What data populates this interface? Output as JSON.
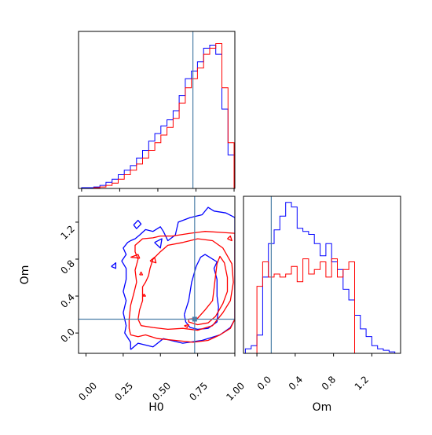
{
  "chart_data": {
    "type": "corner",
    "parameters": [
      "H0",
      "Om"
    ],
    "truth": {
      "H0": 0.73,
      "Om": 0.15
    },
    "colors": {
      "blue": "#0000ff",
      "red": "#ff0000",
      "truth": "#4c7fa8",
      "frame": "#000000"
    },
    "panels": [
      {
        "id": "hist-H0",
        "type": "histogram",
        "xlim": [
          -0.02,
          1.005
        ],
        "ylim": [
          0,
          1.03
        ],
        "x_tick_values": [
          0.0,
          0.25,
          0.5,
          0.75,
          1.0
        ],
        "bin_edges": [
          0.0,
          0.04,
          0.08,
          0.12,
          0.16,
          0.2,
          0.24,
          0.28,
          0.32,
          0.36,
          0.4,
          0.44,
          0.48,
          0.52,
          0.56,
          0.6,
          0.64,
          0.68,
          0.72,
          0.76,
          0.8,
          0.84,
          0.88,
          0.92,
          0.96,
          1.0
        ],
        "series": [
          {
            "color_key": "blue",
            "counts": [
              0.005,
              0.005,
              0.01,
              0.02,
              0.04,
              0.06,
              0.09,
              0.12,
              0.15,
              0.2,
              0.25,
              0.31,
              0.36,
              0.41,
              0.45,
              0.51,
              0.61,
              0.72,
              0.77,
              0.83,
              0.92,
              0.94,
              0.88,
              0.52,
              0.22
            ]
          },
          {
            "color_key": "red",
            "counts": [
              0.0,
              0.0,
              0.005,
              0.01,
              0.02,
              0.035,
              0.06,
              0.09,
              0.12,
              0.16,
              0.2,
              0.25,
              0.3,
              0.35,
              0.4,
              0.46,
              0.56,
              0.66,
              0.72,
              0.79,
              0.88,
              0.92,
              0.95,
              0.66,
              0.3
            ]
          }
        ]
      },
      {
        "id": "scatter-H0-Om",
        "type": "contour",
        "xlim": [
          -0.05,
          1.0
        ],
        "ylim": [
          -0.22,
          1.48
        ],
        "x_ticks": [
          "0.00",
          "0.25",
          "0.50",
          "0.75",
          "1.00"
        ],
        "x_tick_values": [
          0.0,
          0.25,
          0.5,
          0.75,
          1.0
        ],
        "y_ticks": [
          "0.0",
          "0.4",
          "0.8",
          "1.2"
        ],
        "y_tick_values": [
          0.0,
          0.4,
          0.8,
          1.2
        ],
        "xlabel": "H0",
        "ylabel": "Om",
        "contours": [
          {
            "color_key": "blue",
            "points": [
              [
                0.3,
                -0.18
              ],
              [
                0.35,
                -0.11
              ],
              [
                0.45,
                -0.15
              ],
              [
                0.52,
                -0.06
              ],
              [
                0.65,
                -0.11
              ],
              [
                0.78,
                -0.08
              ],
              [
                0.9,
                -0.02
              ],
              [
                0.97,
                0.06
              ],
              [
                1.0,
                0.15
              ],
              [
                1.0,
                0.55
              ],
              [
                1.0,
                1.0
              ],
              [
                1.0,
                1.25
              ],
              [
                0.94,
                1.3
              ],
              [
                0.86,
                1.32
              ],
              [
                0.82,
                1.36
              ],
              [
                0.78,
                1.28
              ],
              [
                0.7,
                1.25
              ],
              [
                0.62,
                1.2
              ],
              [
                0.6,
                1.06
              ],
              [
                0.55,
                1.0
              ],
              [
                0.52,
                1.1
              ],
              [
                0.5,
                1.15
              ],
              [
                0.45,
                1.1
              ],
              [
                0.4,
                1.12
              ],
              [
                0.36,
                1.06
              ],
              [
                0.33,
                1.02
              ],
              [
                0.3,
                1.0
              ],
              [
                0.28,
                0.98
              ],
              [
                0.25,
                0.92
              ],
              [
                0.27,
                0.85
              ],
              [
                0.24,
                0.78
              ],
              [
                0.27,
                0.7
              ],
              [
                0.27,
                0.58
              ],
              [
                0.25,
                0.45
              ],
              [
                0.27,
                0.35
              ],
              [
                0.25,
                0.22
              ],
              [
                0.27,
                0.08
              ],
              [
                0.26,
                0.0
              ],
              [
                0.3,
                -0.1
              ],
              [
                0.3,
                -0.18
              ]
            ]
          },
          {
            "color_key": "blue",
            "points": [
              [
                0.66,
                0.2
              ],
              [
                0.69,
                0.35
              ],
              [
                0.71,
                0.55
              ],
              [
                0.74,
                0.72
              ],
              [
                0.77,
                0.82
              ],
              [
                0.8,
                0.85
              ],
              [
                0.83,
                0.82
              ],
              [
                0.88,
                0.77
              ],
              [
                0.86,
                0.7
              ],
              [
                0.88,
                0.58
              ],
              [
                0.88,
                0.4
              ],
              [
                0.89,
                0.28
              ],
              [
                0.88,
                0.12
              ],
              [
                0.82,
                0.05
              ],
              [
                0.75,
                0.04
              ],
              [
                0.7,
                0.06
              ],
              [
                0.67,
                0.12
              ],
              [
                0.66,
                0.2
              ]
            ]
          },
          {
            "color_key": "blue",
            "points": [
              [
                0.32,
                1.17
              ],
              [
                0.35,
                1.22
              ],
              [
                0.37,
                1.18
              ],
              [
                0.34,
                1.13
              ],
              [
                0.32,
                1.17
              ]
            ]
          },
          {
            "color_key": "blue",
            "points": [
              [
                0.17,
                0.72
              ],
              [
                0.2,
                0.7
              ],
              [
                0.2,
                0.76
              ],
              [
                0.17,
                0.72
              ]
            ]
          },
          {
            "color_key": "blue",
            "points": [
              [
                0.46,
                0.98
              ],
              [
                0.51,
                1.02
              ],
              [
                0.5,
                0.92
              ],
              [
                0.46,
                0.98
              ]
            ]
          },
          {
            "color_key": "red",
            "points": [
              [
                0.3,
                -0.02
              ],
              [
                0.35,
                -0.04
              ],
              [
                0.4,
                -0.02
              ],
              [
                0.48,
                -0.06
              ],
              [
                0.6,
                -0.08
              ],
              [
                0.72,
                -0.1
              ],
              [
                0.82,
                -0.08
              ],
              [
                0.9,
                -0.02
              ],
              [
                0.97,
                0.05
              ],
              [
                1.0,
                0.15
              ],
              [
                1.0,
                0.5
              ],
              [
                1.0,
                1.08
              ],
              [
                0.9,
                1.09
              ],
              [
                0.8,
                1.1
              ],
              [
                0.7,
                1.08
              ],
              [
                0.58,
                1.05
              ],
              [
                0.5,
                1.05
              ],
              [
                0.45,
                1.03
              ],
              [
                0.38,
                1.02
              ],
              [
                0.33,
                0.95
              ],
              [
                0.33,
                0.88
              ],
              [
                0.35,
                0.8
              ],
              [
                0.33,
                0.68
              ],
              [
                0.34,
                0.55
              ],
              [
                0.32,
                0.42
              ],
              [
                0.3,
                0.3
              ],
              [
                0.29,
                0.15
              ],
              [
                0.29,
                0.05
              ],
              [
                0.3,
                -0.02
              ]
            ]
          },
          {
            "color_key": "red",
            "points": [
              [
                0.37,
                0.08
              ],
              [
                0.45,
                0.06
              ],
              [
                0.55,
                0.04
              ],
              [
                0.65,
                0.05
              ],
              [
                0.75,
                0.03
              ],
              [
                0.85,
                0.08
              ],
              [
                0.92,
                0.22
              ],
              [
                0.97,
                0.35
              ],
              [
                0.99,
                0.55
              ],
              [
                0.98,
                0.75
              ],
              [
                0.92,
                0.92
              ],
              [
                0.85,
                1.0
              ],
              [
                0.75,
                1.02
              ],
              [
                0.65,
                0.98
              ],
              [
                0.55,
                0.95
              ],
              [
                0.5,
                0.88
              ],
              [
                0.45,
                0.8
              ],
              [
                0.43,
                0.7
              ],
              [
                0.42,
                0.62
              ],
              [
                0.4,
                0.55
              ],
              [
                0.38,
                0.5
              ],
              [
                0.38,
                0.35
              ],
              [
                0.36,
                0.25
              ],
              [
                0.35,
                0.15
              ],
              [
                0.37,
                0.08
              ]
            ]
          },
          {
            "color_key": "red",
            "points": [
              [
                0.69,
                0.15
              ],
              [
                0.75,
                0.16
              ],
              [
                0.8,
                0.25
              ],
              [
                0.85,
                0.35
              ],
              [
                0.86,
                0.48
              ],
              [
                0.87,
                0.62
              ],
              [
                0.88,
                0.75
              ],
              [
                0.9,
                0.83
              ],
              [
                0.93,
                0.76
              ],
              [
                0.95,
                0.6
              ],
              [
                0.95,
                0.45
              ],
              [
                0.92,
                0.32
              ],
              [
                0.87,
                0.18
              ],
              [
                0.82,
                0.11
              ],
              [
                0.75,
                0.09
              ],
              [
                0.69,
                0.12
              ],
              [
                0.69,
                0.15
              ]
            ]
          },
          {
            "color_key": "red",
            "points": [
              [
                0.3,
                0.82
              ],
              [
                0.35,
                0.85
              ],
              [
                0.36,
                0.81
              ],
              [
                0.3,
                0.82
              ]
            ]
          },
          {
            "color_key": "red",
            "points": [
              [
                0.43,
                0.78
              ],
              [
                0.46,
                0.82
              ],
              [
                0.47,
                0.76
              ],
              [
                0.43,
                0.78
              ]
            ]
          },
          {
            "color_key": "red",
            "points": [
              [
                0.95,
                1.02
              ],
              [
                0.97,
                1.05
              ],
              [
                0.98,
                1.0
              ],
              [
                0.95,
                1.02
              ]
            ]
          },
          {
            "color_key": "red",
            "points": [
              [
                0.66,
                0.08
              ],
              [
                0.69,
                0.09
              ],
              [
                0.68,
                0.06
              ],
              [
                0.66,
                0.08
              ]
            ]
          },
          {
            "color_key": "red",
            "points": [
              [
                0.36,
                0.63
              ],
              [
                0.37,
                0.66
              ],
              [
                0.38,
                0.63
              ],
              [
                0.36,
                0.63
              ]
            ]
          },
          {
            "color_key": "red",
            "points": [
              [
                0.38,
                0.4
              ],
              [
                0.39,
                0.42
              ],
              [
                0.4,
                0.4
              ],
              [
                0.38,
                0.4
              ]
            ]
          }
        ]
      },
      {
        "id": "hist-Om",
        "type": "histogram",
        "xlim": [
          -0.14,
          1.5
        ],
        "ylim": [
          0,
          1.03
        ],
        "x_ticks": [
          "0.0",
          "0.4",
          "0.8",
          "1.2"
        ],
        "x_tick_values": [
          0.0,
          0.4,
          0.8,
          1.2
        ],
        "xlabel": "Om",
        "bin_edges": [
          -0.12,
          -0.06,
          0.0,
          0.06,
          0.12,
          0.18,
          0.24,
          0.3,
          0.36,
          0.42,
          0.48,
          0.54,
          0.6,
          0.66,
          0.72,
          0.78,
          0.84,
          0.9,
          0.96,
          1.02,
          1.08,
          1.14,
          1.2,
          1.26,
          1.32,
          1.38,
          1.44
        ],
        "series": [
          {
            "color_key": "blue",
            "counts": [
              0.03,
              0.05,
              0.12,
              0.5,
              0.72,
              0.81,
              0.9,
              0.99,
              0.96,
              0.82,
              0.8,
              0.78,
              0.72,
              0.64,
              0.72,
              0.6,
              0.55,
              0.42,
              0.35,
              0.25,
              0.16,
              0.11,
              0.05,
              0.03,
              0.02,
              0.01
            ]
          },
          {
            "color_key": "red",
            "counts": [
              0.0,
              0.0,
              0.44,
              0.6,
              0.5,
              0.52,
              0.5,
              0.52,
              0.57,
              0.47,
              0.62,
              0.52,
              0.55,
              0.6,
              0.5,
              0.62,
              0.5,
              0.55,
              0.6,
              0.0,
              0.0,
              0.0,
              0.0,
              0.0,
              0.0,
              0.0
            ]
          }
        ]
      }
    ]
  }
}
